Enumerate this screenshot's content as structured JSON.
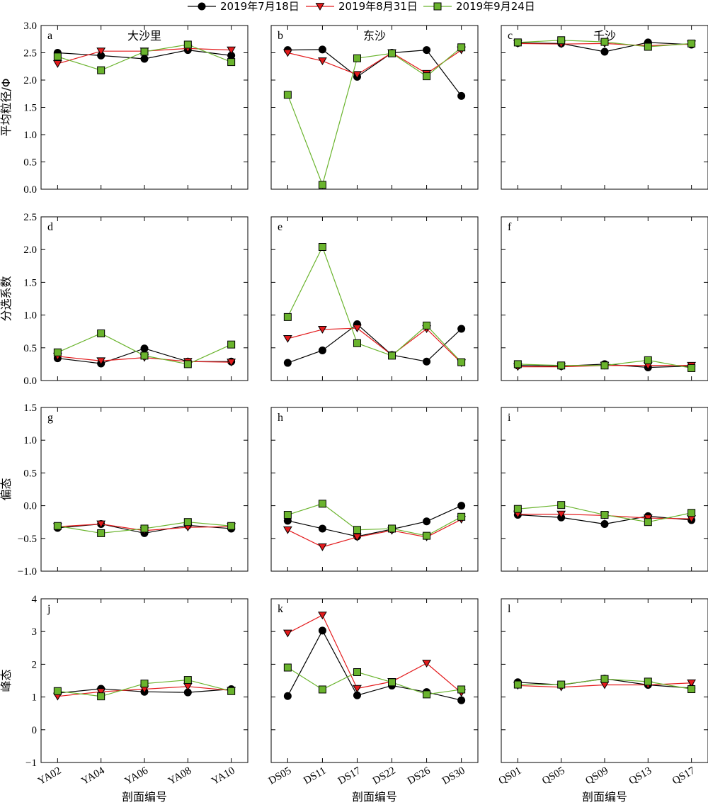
{
  "legend": [
    {
      "label": "2019年7月18日",
      "color": "#000000",
      "marker": "circle"
    },
    {
      "label": "2019年8月31日",
      "color": "#e31a1c",
      "marker": "triangle-down"
    },
    {
      "label": "2019年9月24日",
      "color": "#6ab42d",
      "marker": "square"
    }
  ],
  "row_ylabels": [
    "平均粒径/Φ",
    "分选系数",
    "偏态",
    "峰态"
  ],
  "col_xlabel": "剖面编号",
  "columns": [
    {
      "site": "大沙里",
      "categories": [
        "YA02",
        "YA04",
        "YA06",
        "YA08",
        "YA10"
      ]
    },
    {
      "site": "东沙",
      "categories": [
        "DS05",
        "DS11",
        "DS17",
        "DS22",
        "DS26",
        "DS30"
      ]
    },
    {
      "site": "千沙",
      "categories": [
        "QS01",
        "QS05",
        "QS09",
        "QS13",
        "QS17"
      ]
    }
  ],
  "rows": [
    {
      "ylim": [
        0,
        3
      ],
      "ticks": [
        "0.0",
        "0.5",
        "1.0",
        "1.5",
        "2.0",
        "2.5",
        "3.0"
      ]
    },
    {
      "ylim": [
        0,
        2.5
      ],
      "ticks": [
        "0.0",
        "0.5",
        "1.0",
        "1.5",
        "2.0",
        "2.5"
      ]
    },
    {
      "ylim": [
        -1,
        1.5
      ],
      "ticks": [
        "−1.0",
        "−0.5",
        "0.0",
        "0.5",
        "1.0",
        "1.5"
      ]
    },
    {
      "ylim": [
        -1,
        4
      ],
      "ticks": [
        "−1",
        "0",
        "1",
        "2",
        "3",
        "4"
      ]
    }
  ],
  "chart_data": [
    {
      "panel": "a",
      "type": "line",
      "site": "大沙里",
      "ylabel": "平均粒径/Φ",
      "categories": [
        "YA02",
        "YA04",
        "YA06",
        "YA08",
        "YA10"
      ],
      "ylim": [
        0,
        3
      ],
      "series": [
        {
          "name": "2019年7月18日",
          "values": [
            2.5,
            2.45,
            2.39,
            2.55,
            2.45
          ]
        },
        {
          "name": "2019年8月31日",
          "values": [
            2.3,
            2.53,
            2.53,
            2.58,
            2.55
          ]
        },
        {
          "name": "2019年9月24日",
          "values": [
            2.43,
            2.18,
            2.52,
            2.65,
            2.33
          ]
        }
      ]
    },
    {
      "panel": "b",
      "type": "line",
      "site": "东沙",
      "categories": [
        "DS05",
        "DS11",
        "DS17",
        "DS22",
        "DS26",
        "DS30"
      ],
      "ylim": [
        0,
        3
      ],
      "series": [
        {
          "name": "2019年7月18日",
          "values": [
            2.55,
            2.56,
            2.06,
            2.5,
            2.55,
            1.71
          ]
        },
        {
          "name": "2019年8月31日",
          "values": [
            2.5,
            2.35,
            2.1,
            2.5,
            2.12,
            2.55
          ]
        },
        {
          "name": "2019年9月24日",
          "values": [
            1.73,
            0.08,
            2.4,
            2.49,
            2.07,
            2.6
          ]
        }
      ]
    },
    {
      "panel": "c",
      "type": "line",
      "site": "千沙",
      "categories": [
        "QS01",
        "QS05",
        "QS09",
        "QS13",
        "QS17"
      ],
      "ylim": [
        0,
        3
      ],
      "series": [
        {
          "name": "2019年7月18日",
          "values": [
            2.68,
            2.67,
            2.52,
            2.69,
            2.65
          ]
        },
        {
          "name": "2019年8月31日",
          "values": [
            2.67,
            2.66,
            2.67,
            2.63,
            2.66
          ]
        },
        {
          "name": "2019年9月24日",
          "values": [
            2.69,
            2.73,
            2.7,
            2.61,
            2.67
          ]
        }
      ]
    },
    {
      "panel": "d",
      "type": "line",
      "site": "大沙里",
      "ylabel": "分选系数",
      "categories": [
        "YA02",
        "YA04",
        "YA06",
        "YA08",
        "YA10"
      ],
      "ylim": [
        0,
        2.5
      ],
      "series": [
        {
          "name": "2019年7月18日",
          "values": [
            0.34,
            0.26,
            0.49,
            0.29,
            0.29
          ]
        },
        {
          "name": "2019年8月31日",
          "values": [
            0.37,
            0.3,
            0.35,
            0.29,
            0.28
          ]
        },
        {
          "name": "2019年9月24日",
          "values": [
            0.43,
            0.72,
            0.38,
            0.25,
            0.55
          ]
        }
      ]
    },
    {
      "panel": "e",
      "type": "line",
      "site": "东沙",
      "categories": [
        "DS05",
        "DS11",
        "DS17",
        "DS22",
        "DS26",
        "DS30"
      ],
      "ylim": [
        0,
        2.5
      ],
      "series": [
        {
          "name": "2019年7月18日",
          "values": [
            0.27,
            0.46,
            0.86,
            0.39,
            0.29,
            0.79
          ]
        },
        {
          "name": "2019年8月31日",
          "values": [
            0.64,
            0.78,
            0.8,
            0.39,
            0.79,
            0.27
          ]
        },
        {
          "name": "2019年9月24日",
          "values": [
            0.97,
            2.04,
            0.57,
            0.38,
            0.84,
            0.28
          ]
        }
      ]
    },
    {
      "panel": "f",
      "type": "line",
      "site": "千沙",
      "categories": [
        "QS01",
        "QS05",
        "QS09",
        "QS13",
        "QS17"
      ],
      "ylim": [
        0,
        2.5
      ],
      "series": [
        {
          "name": "2019年7月18日",
          "values": [
            0.23,
            0.22,
            0.25,
            0.2,
            0.22
          ]
        },
        {
          "name": "2019年8月31日",
          "values": [
            0.21,
            0.21,
            0.23,
            0.23,
            0.23
          ]
        },
        {
          "name": "2019年9月24日",
          "values": [
            0.25,
            0.23,
            0.23,
            0.31,
            0.19
          ]
        }
      ]
    },
    {
      "panel": "g",
      "type": "line",
      "site": "大沙里",
      "ylabel": "偏态",
      "categories": [
        "YA02",
        "YA04",
        "YA06",
        "YA08",
        "YA10"
      ],
      "ylim": [
        -1,
        1.5
      ],
      "series": [
        {
          "name": "2019年7月18日",
          "values": [
            -0.34,
            -0.28,
            -0.42,
            -0.3,
            -0.35
          ]
        },
        {
          "name": "2019年8月31日",
          "values": [
            -0.32,
            -0.28,
            -0.38,
            -0.33,
            -0.32
          ]
        },
        {
          "name": "2019年9月24日",
          "values": [
            -0.31,
            -0.42,
            -0.35,
            -0.25,
            -0.31
          ]
        }
      ]
    },
    {
      "panel": "h",
      "type": "line",
      "site": "东沙",
      "categories": [
        "DS05",
        "DS11",
        "DS17",
        "DS22",
        "DS26",
        "DS30"
      ],
      "ylim": [
        -1,
        1.5
      ],
      "series": [
        {
          "name": "2019年7月18日",
          "values": [
            -0.23,
            -0.35,
            -0.47,
            -0.36,
            -0.24,
            0.0
          ]
        },
        {
          "name": "2019年8月31日",
          "values": [
            -0.37,
            -0.63,
            -0.48,
            -0.38,
            -0.48,
            -0.21
          ]
        },
        {
          "name": "2019年9月24日",
          "values": [
            -0.14,
            0.03,
            -0.37,
            -0.35,
            -0.46,
            -0.17
          ]
        }
      ]
    },
    {
      "panel": "i",
      "type": "line",
      "site": "千沙",
      "categories": [
        "QS01",
        "QS05",
        "QS09",
        "QS13",
        "QS17"
      ],
      "ylim": [
        -1,
        1.5
      ],
      "series": [
        {
          "name": "2019年7月18日",
          "values": [
            -0.14,
            -0.18,
            -0.28,
            -0.16,
            -0.22
          ]
        },
        {
          "name": "2019年8月31日",
          "values": [
            -0.13,
            -0.13,
            -0.15,
            -0.19,
            -0.2
          ]
        },
        {
          "name": "2019年9月24日",
          "values": [
            -0.05,
            0.01,
            -0.14,
            -0.25,
            -0.11
          ]
        }
      ]
    },
    {
      "panel": "j",
      "type": "line",
      "site": "大沙里",
      "ylabel": "峰态",
      "categories": [
        "YA02",
        "YA04",
        "YA06",
        "YA08",
        "YA10"
      ],
      "ylim": [
        -1,
        4
      ],
      "series": [
        {
          "name": "2019年7月18日",
          "values": [
            1.12,
            1.25,
            1.16,
            1.14,
            1.24
          ]
        },
        {
          "name": "2019年8月31日",
          "values": [
            1.02,
            1.16,
            1.24,
            1.32,
            1.2
          ]
        },
        {
          "name": "2019年9月24日",
          "values": [
            1.18,
            1.02,
            1.41,
            1.52,
            1.18
          ]
        }
      ]
    },
    {
      "panel": "k",
      "type": "line",
      "site": "东沙",
      "categories": [
        "DS05",
        "DS11",
        "DS17",
        "DS22",
        "DS26",
        "DS30"
      ],
      "ylim": [
        -1,
        4
      ],
      "series": [
        {
          "name": "2019年7月18日",
          "values": [
            1.03,
            3.03,
            1.05,
            1.35,
            1.15,
            0.9
          ]
        },
        {
          "name": "2019年8月31日",
          "values": [
            2.95,
            3.5,
            1.26,
            1.47,
            2.03,
            1.13
          ]
        },
        {
          "name": "2019年9月24日",
          "values": [
            1.9,
            1.23,
            1.76,
            1.45,
            1.08,
            1.23
          ]
        }
      ]
    },
    {
      "panel": "l",
      "type": "line",
      "site": "千沙",
      "categories": [
        "QS01",
        "QS05",
        "QS09",
        "QS13",
        "QS17"
      ],
      "ylim": [
        -1,
        4
      ],
      "series": [
        {
          "name": "2019年7月18日",
          "values": [
            1.45,
            1.37,
            1.56,
            1.37,
            1.27
          ]
        },
        {
          "name": "2019年8月31日",
          "values": [
            1.35,
            1.3,
            1.37,
            1.37,
            1.43
          ]
        },
        {
          "name": "2019年9月24日",
          "values": [
            1.38,
            1.38,
            1.55,
            1.47,
            1.24
          ]
        }
      ]
    }
  ]
}
